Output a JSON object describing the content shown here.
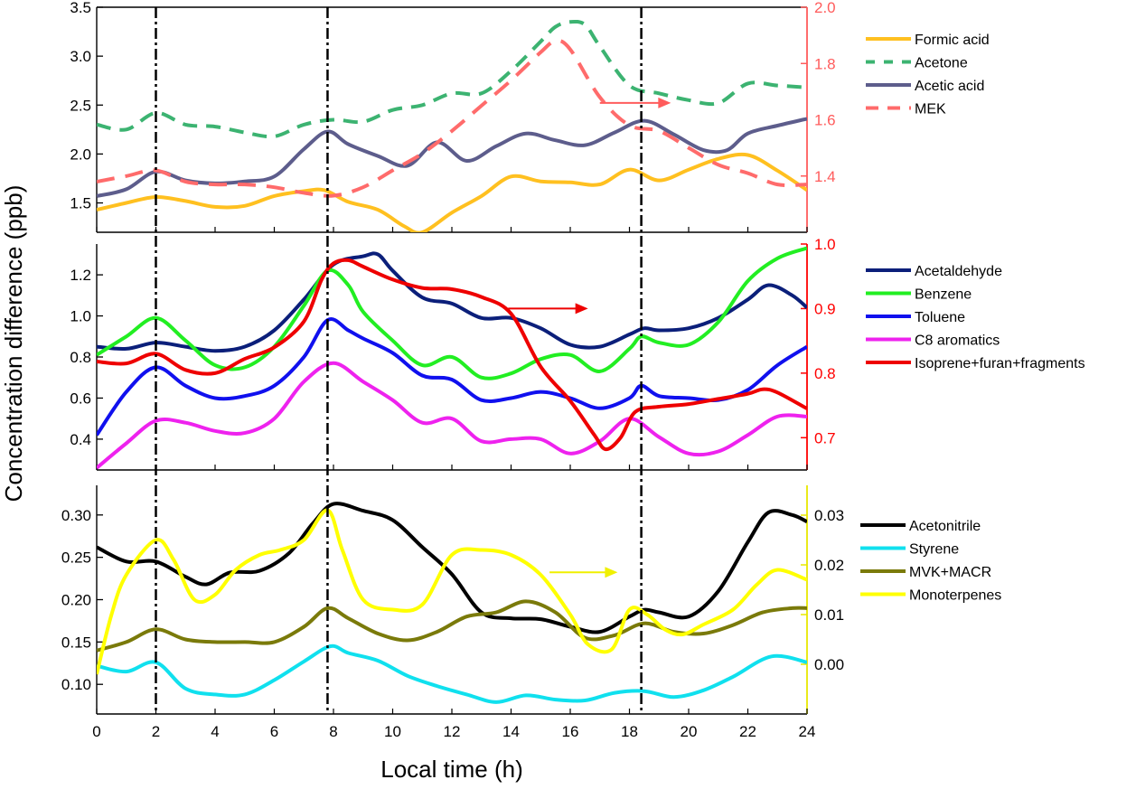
{
  "figure": {
    "ylabel": "Concentration difference (ppb)",
    "xlabel": "Local time (h)",
    "x_ticks": [
      "0",
      "2",
      "4",
      "6",
      "8",
      "10",
      "12",
      "14",
      "16",
      "18",
      "20",
      "22",
      "24"
    ]
  },
  "vlines_x": [
    2.0,
    7.8,
    18.4
  ],
  "chart_data": [
    {
      "type": "line",
      "panel": "top",
      "xlim": [
        0,
        24
      ],
      "ylim_left": [
        1.2,
        3.5
      ],
      "ylim_right": [
        1.2,
        2.0
      ],
      "right_axis_color": "#ff5c5c",
      "left_ticks": [
        "1.5",
        "2.0",
        "2.5",
        "3.0",
        "3.5"
      ],
      "right_ticks": [
        "1.4",
        "1.6",
        "1.8",
        "2.0"
      ],
      "arrow": {
        "x1": 17.0,
        "x2": 19.4,
        "axis": "right",
        "y": 1.66,
        "color": "#ff5c5c"
      },
      "series": [
        {
          "name": "Formic acid",
          "axis": "left",
          "color": "#ffc020",
          "dash": "",
          "x": [
            0,
            1,
            2,
            3,
            4,
            5,
            6,
            7,
            7.7,
            8.5,
            9.5,
            10.4,
            11,
            12,
            13,
            14,
            15,
            16,
            17,
            18,
            19,
            20,
            21,
            22,
            23,
            24
          ],
          "y": [
            1.43,
            1.5,
            1.56,
            1.52,
            1.46,
            1.47,
            1.57,
            1.62,
            1.63,
            1.51,
            1.43,
            1.26,
            1.2,
            1.4,
            1.57,
            1.77,
            1.72,
            1.71,
            1.69,
            1.84,
            1.73,
            1.84,
            1.95,
            1.99,
            1.83,
            1.63
          ]
        },
        {
          "name": "Acetone",
          "axis": "left",
          "color": "#3cb371",
          "dash": "16,10",
          "x": [
            0,
            1,
            2,
            3,
            4,
            5,
            6,
            7,
            8,
            9,
            10,
            11,
            12,
            13,
            14,
            15,
            15.5,
            16,
            16.5,
            17,
            18,
            19,
            20,
            21,
            22,
            23,
            24
          ],
          "y": [
            2.3,
            2.25,
            2.42,
            2.3,
            2.28,
            2.22,
            2.18,
            2.3,
            2.35,
            2.33,
            2.45,
            2.5,
            2.62,
            2.62,
            2.85,
            3.15,
            3.3,
            3.35,
            3.32,
            3.1,
            2.7,
            2.62,
            2.55,
            2.52,
            2.72,
            2.7,
            2.68
          ]
        },
        {
          "name": "Acetic  acid",
          "axis": "left",
          "color": "#5d5d8c",
          "dash": "",
          "x": [
            0,
            1,
            2,
            3,
            4,
            5,
            6,
            7,
            7.8,
            8.5,
            9.5,
            10.5,
            11.5,
            12.5,
            13.5,
            14.5,
            15.5,
            16.5,
            17.5,
            18.5,
            19.5,
            20.5,
            21.3,
            22,
            23,
            24
          ],
          "y": [
            1.57,
            1.64,
            1.82,
            1.73,
            1.7,
            1.72,
            1.77,
            2.05,
            2.23,
            2.1,
            1.98,
            1.88,
            2.12,
            1.93,
            2.08,
            2.21,
            2.14,
            2.09,
            2.22,
            2.34,
            2.2,
            2.04,
            2.04,
            2.21,
            2.29,
            2.36
          ]
        },
        {
          "name": "MEK",
          "axis": "right",
          "color": "#ff6b6b",
          "dash": "20,12",
          "x": [
            0,
            1,
            2,
            3,
            4,
            5,
            6,
            7,
            8,
            9,
            10,
            11,
            12,
            13,
            14,
            15,
            15.5,
            16,
            17,
            18,
            19,
            20,
            21,
            22,
            23,
            24
          ],
          "y": [
            1.38,
            1.4,
            1.42,
            1.38,
            1.37,
            1.37,
            1.36,
            1.34,
            1.33,
            1.36,
            1.42,
            1.48,
            1.56,
            1.65,
            1.74,
            1.84,
            1.88,
            1.85,
            1.68,
            1.58,
            1.56,
            1.5,
            1.44,
            1.41,
            1.37,
            1.37
          ]
        }
      ]
    },
    {
      "type": "line",
      "panel": "middle",
      "xlim": [
        0,
        24
      ],
      "ylim_left": [
        0.25,
        1.35
      ],
      "ylim_right": [
        0.65,
        1.0
      ],
      "right_axis_color": "#ff0000",
      "left_ticks": [
        "0.4",
        "0.6",
        "0.8",
        "1.0",
        "1.2"
      ],
      "right_ticks": [
        "0.7",
        "0.8",
        "0.9",
        "1.0"
      ],
      "arrow": {
        "x1": 13.9,
        "x2": 16.6,
        "axis": "right",
        "y": 0.9,
        "color": "#ee0000"
      },
      "series": [
        {
          "name": "Acetaldehyde",
          "axis": "left",
          "color": "#0b1f7a",
          "dash": "",
          "x": [
            0,
            1,
            2,
            3,
            4,
            5,
            6,
            7,
            8,
            9,
            9.5,
            10,
            11,
            12,
            13,
            14,
            15,
            16,
            17,
            18,
            18.5,
            19,
            20,
            21,
            22,
            22.7,
            23.5,
            24
          ],
          "y": [
            0.85,
            0.84,
            0.87,
            0.85,
            0.83,
            0.85,
            0.93,
            1.08,
            1.25,
            1.29,
            1.3,
            1.22,
            1.09,
            1.06,
            0.99,
            0.99,
            0.94,
            0.86,
            0.85,
            0.91,
            0.94,
            0.93,
            0.94,
            0.99,
            1.08,
            1.15,
            1.1,
            1.04
          ]
        },
        {
          "name": "Benzene",
          "axis": "left",
          "color": "#22ee22",
          "dash": "",
          "x": [
            0,
            1,
            2,
            3,
            4,
            5,
            6,
            7,
            7.8,
            8.5,
            9,
            10,
            11,
            12,
            13,
            14,
            15,
            16,
            17,
            18,
            18.4,
            19,
            20,
            21,
            22,
            23,
            24
          ],
          "y": [
            0.81,
            0.9,
            0.99,
            0.88,
            0.76,
            0.75,
            0.85,
            1.05,
            1.22,
            1.15,
            1.02,
            0.88,
            0.76,
            0.8,
            0.7,
            0.72,
            0.79,
            0.81,
            0.73,
            0.84,
            0.9,
            0.87,
            0.86,
            0.97,
            1.17,
            1.28,
            1.33
          ]
        },
        {
          "name": "Toluene",
          "axis": "left",
          "color": "#1010ee",
          "dash": "",
          "x": [
            0,
            1,
            2,
            3,
            4,
            5,
            6,
            7,
            7.8,
            8.5,
            9,
            10,
            11,
            12,
            13,
            14,
            15,
            16,
            17,
            18,
            18.4,
            19,
            20,
            21,
            22,
            23,
            24
          ],
          "y": [
            0.42,
            0.63,
            0.75,
            0.66,
            0.6,
            0.61,
            0.66,
            0.8,
            0.98,
            0.93,
            0.89,
            0.82,
            0.71,
            0.69,
            0.59,
            0.6,
            0.63,
            0.6,
            0.55,
            0.6,
            0.66,
            0.61,
            0.6,
            0.59,
            0.64,
            0.76,
            0.85
          ]
        },
        {
          "name": "C8 aromatics",
          "axis": "left",
          "color": "#ee22ee",
          "dash": "",
          "x": [
            0,
            1,
            2,
            3,
            4,
            5,
            6,
            7,
            8,
            9,
            10,
            11,
            12,
            13,
            14,
            15,
            16,
            17,
            18,
            19,
            20,
            21,
            22,
            23,
            24
          ],
          "y": [
            0.26,
            0.38,
            0.49,
            0.48,
            0.44,
            0.43,
            0.5,
            0.68,
            0.77,
            0.68,
            0.59,
            0.48,
            0.5,
            0.39,
            0.4,
            0.4,
            0.33,
            0.39,
            0.5,
            0.41,
            0.33,
            0.34,
            0.42,
            0.51,
            0.51
          ]
        },
        {
          "name": "Isoprene+furan+fragments",
          "axis": "right",
          "color": "#ee0000",
          "dash": "",
          "x": [
            0,
            1,
            2,
            3,
            4,
            5,
            6,
            7,
            7.6,
            8,
            8.5,
            9,
            10,
            11,
            12,
            13,
            14,
            15,
            16,
            16.8,
            17.2,
            17.7,
            18.2,
            19,
            20,
            21,
            22,
            22.5,
            23,
            24
          ],
          "y": [
            0.818,
            0.815,
            0.83,
            0.805,
            0.8,
            0.822,
            0.84,
            0.88,
            0.945,
            0.97,
            0.975,
            0.965,
            0.945,
            0.932,
            0.93,
            0.918,
            0.892,
            0.81,
            0.757,
            0.705,
            0.682,
            0.7,
            0.74,
            0.748,
            0.752,
            0.76,
            0.768,
            0.775,
            0.77,
            0.745
          ]
        }
      ]
    },
    {
      "type": "line",
      "panel": "bottom",
      "xlim": [
        0,
        24
      ],
      "ylim_left": [
        0.065,
        0.335
      ],
      "ylim_right": [
        -0.01,
        0.036
      ],
      "right_axis_color": "#e8e800",
      "left_ticks": [
        "0.10",
        "0.15",
        "0.20",
        "0.25",
        "0.30"
      ],
      "right_ticks": [
        "0.00",
        "0.01",
        "0.02",
        "0.03"
      ],
      "arrow": {
        "x1": 15.3,
        "x2": 17.6,
        "axis": "right",
        "y": 0.0185,
        "color": "#f0f000"
      },
      "series": [
        {
          "name": "Acetonitrile",
          "axis": "left",
          "color": "#000000",
          "dash": "",
          "x": [
            0,
            1,
            2,
            3,
            3.7,
            4.5,
            5.5,
            6.5,
            7.3,
            8,
            9,
            10,
            11,
            12,
            13,
            14,
            15,
            16,
            17,
            18,
            18.5,
            19,
            20,
            21,
            22,
            22.7,
            23.5,
            24
          ],
          "y": [
            0.262,
            0.245,
            0.245,
            0.227,
            0.218,
            0.232,
            0.234,
            0.255,
            0.29,
            0.313,
            0.305,
            0.294,
            0.262,
            0.23,
            0.185,
            0.178,
            0.177,
            0.168,
            0.162,
            0.18,
            0.188,
            0.185,
            0.18,
            0.21,
            0.268,
            0.303,
            0.3,
            0.292
          ]
        },
        {
          "name": "Styrene",
          "axis": "left",
          "color": "#10e0ee",
          "dash": "",
          "x": [
            0,
            1,
            2,
            3,
            4,
            5,
            6,
            7,
            7.9,
            8.5,
            9.5,
            10.5,
            11.5,
            12.5,
            13.5,
            14.5,
            15.5,
            16.5,
            17.5,
            18.5,
            19.5,
            20.5,
            21.5,
            22.8,
            24
          ],
          "y": [
            0.122,
            0.115,
            0.126,
            0.095,
            0.088,
            0.088,
            0.105,
            0.127,
            0.145,
            0.137,
            0.128,
            0.11,
            0.098,
            0.088,
            0.079,
            0.087,
            0.082,
            0.081,
            0.09,
            0.092,
            0.085,
            0.093,
            0.109,
            0.133,
            0.126
          ]
        },
        {
          "name": "MVK+MACR",
          "axis": "left",
          "color": "#7a7a0a",
          "dash": "",
          "x": [
            0,
            1,
            2,
            3,
            4,
            5,
            6,
            7,
            7.8,
            8.5,
            9.5,
            10.5,
            11.5,
            12.5,
            13.5,
            14.5,
            15.5,
            16.5,
            17.5,
            18.5,
            19.5,
            20.5,
            21.5,
            22.5,
            23.5,
            24
          ],
          "y": [
            0.14,
            0.15,
            0.165,
            0.153,
            0.15,
            0.15,
            0.15,
            0.168,
            0.19,
            0.178,
            0.16,
            0.152,
            0.162,
            0.18,
            0.185,
            0.198,
            0.185,
            0.155,
            0.158,
            0.172,
            0.162,
            0.16,
            0.17,
            0.185,
            0.19,
            0.19
          ]
        },
        {
          "name": "Monoterpenes",
          "axis": "right",
          "color": "#ffff00",
          "dash": "",
          "x": [
            0,
            0.5,
            1,
            2,
            2.6,
            3.3,
            4,
            4.7,
            5.5,
            6.2,
            7,
            7.8,
            8.3,
            9,
            10,
            11,
            12,
            13,
            14,
            15,
            16,
            16.6,
            17.4,
            18,
            18.6,
            19.2,
            19.8,
            20.5,
            21.5,
            22.3,
            23,
            24
          ],
          "y": [
            -0.002,
            0.01,
            0.018,
            0.025,
            0.021,
            0.013,
            0.014,
            0.019,
            0.022,
            0.023,
            0.025,
            0.031,
            0.023,
            0.013,
            0.011,
            0.012,
            0.022,
            0.023,
            0.022,
            0.018,
            0.01,
            0.004,
            0.003,
            0.011,
            0.01,
            0.007,
            0.006,
            0.008,
            0.011,
            0.016,
            0.019,
            0.017
          ]
        }
      ]
    }
  ]
}
